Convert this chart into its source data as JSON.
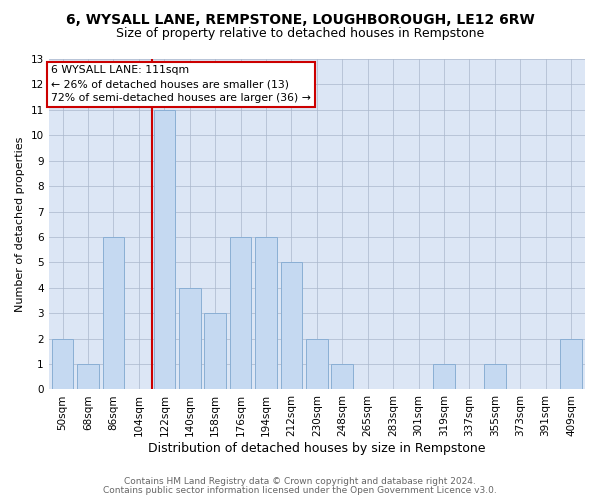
{
  "title": "6, WYSALL LANE, REMPSTONE, LOUGHBOROUGH, LE12 6RW",
  "subtitle": "Size of property relative to detached houses in Rempstone",
  "xlabel": "Distribution of detached houses by size in Rempstone",
  "ylabel": "Number of detached properties",
  "categories": [
    "50sqm",
    "68sqm",
    "86sqm",
    "104sqm",
    "122sqm",
    "140sqm",
    "158sqm",
    "176sqm",
    "194sqm",
    "212sqm",
    "230sqm",
    "248sqm",
    "265sqm",
    "283sqm",
    "301sqm",
    "319sqm",
    "337sqm",
    "355sqm",
    "373sqm",
    "391sqm",
    "409sqm"
  ],
  "values": [
    2,
    1,
    6,
    0,
    11,
    4,
    3,
    6,
    6,
    5,
    2,
    1,
    0,
    0,
    0,
    1,
    0,
    1,
    0,
    0,
    2
  ],
  "bar_color": "#c5d9f1",
  "bar_edge_color": "#8aafd4",
  "annotation_title": "6 WYSALL LANE: 111sqm",
  "annotation_line1": "← 26% of detached houses are smaller (13)",
  "annotation_line2": "72% of semi-detached houses are larger (36) →",
  "annotation_box_color": "#cc0000",
  "vline_color": "#cc0000",
  "vline_x": 3.5,
  "ylim": [
    0,
    13
  ],
  "yticks": [
    0,
    1,
    2,
    3,
    4,
    5,
    6,
    7,
    8,
    9,
    10,
    11,
    12,
    13
  ],
  "footnote1": "Contains HM Land Registry data © Crown copyright and database right 2024.",
  "footnote2": "Contains public sector information licensed under the Open Government Licence v3.0.",
  "grid_color": "#aab8cc",
  "background_color": "#dce6f5",
  "title_fontsize": 10,
  "subtitle_fontsize": 9,
  "ylabel_fontsize": 8,
  "xlabel_fontsize": 9,
  "tick_fontsize": 7.5,
  "footnote_fontsize": 6.5,
  "footnote_color": "#666666"
}
